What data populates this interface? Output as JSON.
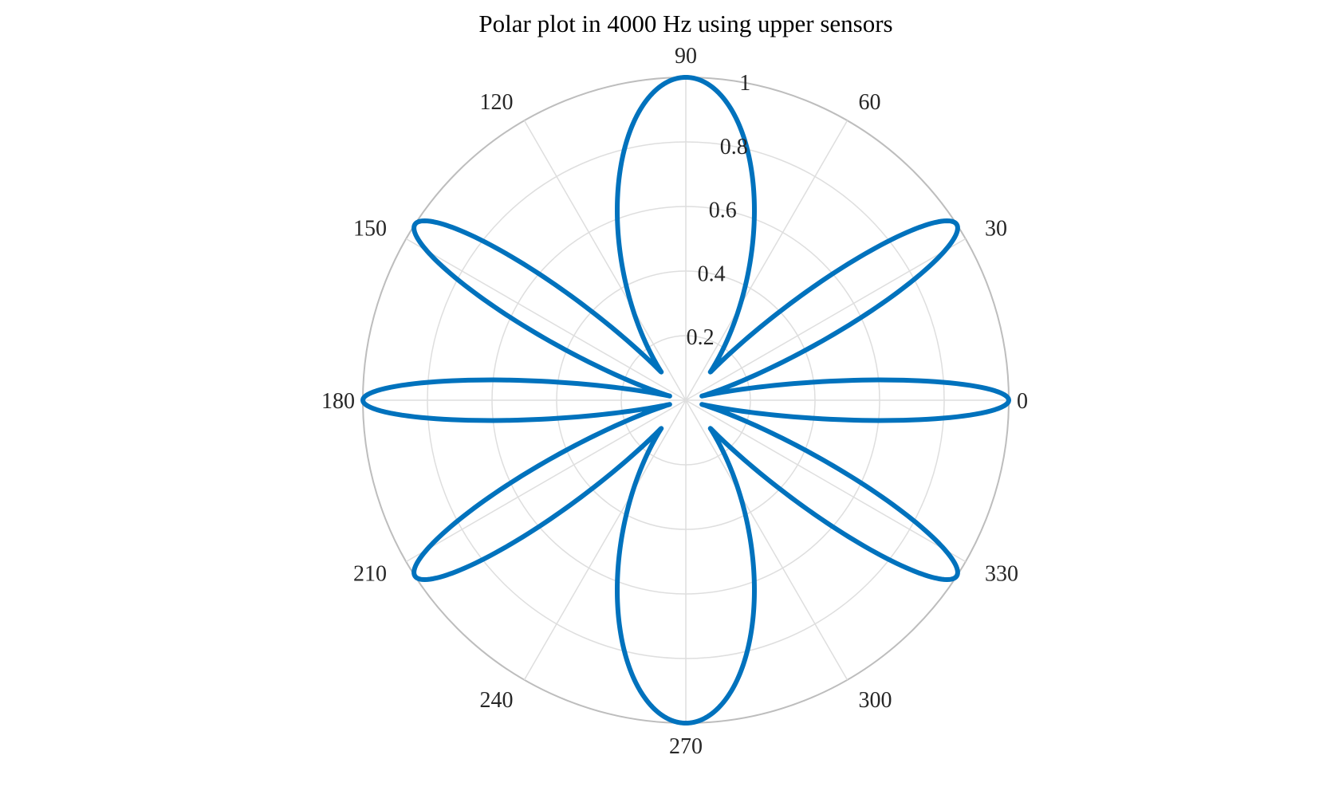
{
  "chart_data": {
    "type": "polar-line",
    "title": "Polar plot in 4000 Hz using upper sensors",
    "theta_unit": "degrees",
    "theta_ticks": [
      {
        "value": 0,
        "label": "0"
      },
      {
        "value": 30,
        "label": "30"
      },
      {
        "value": 60,
        "label": "60"
      },
      {
        "value": 90,
        "label": "90"
      },
      {
        "value": 120,
        "label": "120"
      },
      {
        "value": 150,
        "label": "150"
      },
      {
        "value": 180,
        "label": "180"
      },
      {
        "value": 210,
        "label": "210"
      },
      {
        "value": 240,
        "label": "240"
      },
      {
        "value": 270,
        "label": "270"
      },
      {
        "value": 300,
        "label": "300"
      },
      {
        "value": 330,
        "label": "330"
      }
    ],
    "r_ticks": [
      {
        "value": 0.2,
        "label": "0.2"
      },
      {
        "value": 0.4,
        "label": "0.4"
      },
      {
        "value": 0.6,
        "label": "0.6"
      },
      {
        "value": 0.8,
        "label": "0.8"
      },
      {
        "value": 1,
        "label": "1"
      }
    ],
    "r_lim": [
      0,
      1
    ],
    "grid": true,
    "series": [
      {
        "color": "#0072BD",
        "lobes": [
          {
            "center_deg": 0,
            "peak": 1.0,
            "half_width_deg": 7
          },
          {
            "center_deg": 33,
            "peak": 1.0,
            "half_width_deg": 9
          },
          {
            "center_deg": 90,
            "peak": 1.0,
            "half_width_deg": 24
          },
          {
            "center_deg": 147,
            "peak": 1.0,
            "half_width_deg": 9
          },
          {
            "center_deg": 180,
            "peak": 1.0,
            "half_width_deg": 7
          },
          {
            "center_deg": 213,
            "peak": 1.0,
            "half_width_deg": 9
          },
          {
            "center_deg": 270,
            "peak": 1.0,
            "half_width_deg": 24
          },
          {
            "center_deg": 327,
            "peak": 1.0,
            "half_width_deg": 9
          }
        ]
      }
    ]
  }
}
